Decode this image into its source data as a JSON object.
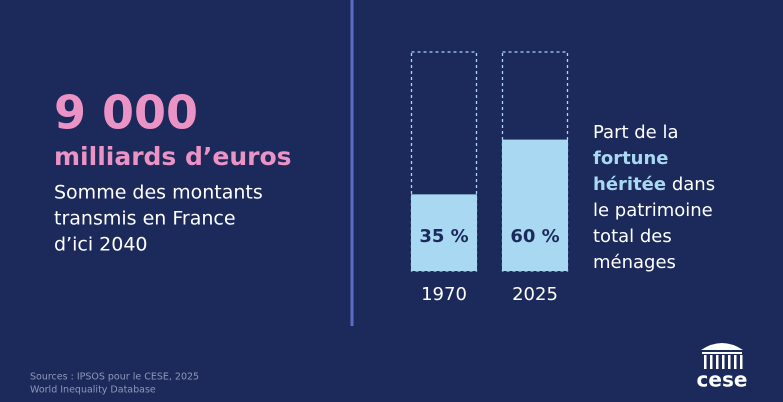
{
  "headline": {
    "amount": "9 000",
    "unit": "milliards d’euros",
    "description": [
      "Somme des montants",
      "transmis en France",
      "d’ici 2040"
    ]
  },
  "chart_data": {
    "type": "bar",
    "categories": [
      "1970",
      "2025"
    ],
    "values": [
      35,
      60
    ],
    "value_labels": [
      "35 %",
      "60 %"
    ],
    "color": "#a8d8f2",
    "ylim": [
      0,
      100
    ],
    "caption": [
      "Part de la",
      "fortune",
      "héritée",
      "dans",
      "le patrimoine",
      "total des",
      "ménages"
    ]
  },
  "sources": [
    "Sources : IPSOS pour le CESE, 2025",
    "World Inequality Database"
  ],
  "logo": "cese"
}
